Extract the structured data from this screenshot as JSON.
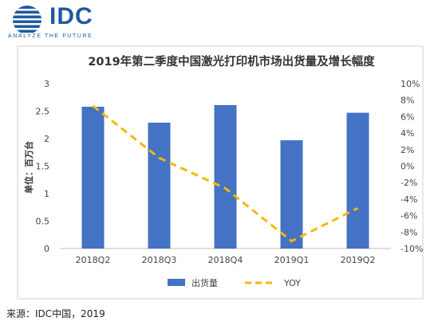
{
  "brand": {
    "name": "IDC",
    "tagline": "ANALYZE THE FUTURE",
    "color": "#1e5a9c"
  },
  "source_note": "来源：IDC中国，2019",
  "chart_data": {
    "type": "bar",
    "title": "2019年第二季度中国激光打印机市场出货量及增长幅度",
    "categories": [
      "2018Q2",
      "2018Q3",
      "2018Q4",
      "2019Q1",
      "2019Q2"
    ],
    "ylabel": "单位：百万台",
    "ylim": [
      0,
      3
    ],
    "yticks": [
      "0",
      "0.5",
      "1",
      "1.5",
      "2",
      "2.5",
      "3"
    ],
    "y2lim": [
      -10,
      10
    ],
    "y2ticks": [
      "-10%",
      "-8%",
      "-6%",
      "-4%",
      "-2%",
      "0%",
      "2%",
      "4%",
      "6%",
      "8%",
      "10%"
    ],
    "series": [
      {
        "name": "出货量",
        "type": "bar",
        "axis": "left",
        "color": "#4472c4",
        "values": [
          2.58,
          2.29,
          2.61,
          1.97,
          2.47
        ]
      },
      {
        "name": "YOY",
        "type": "line",
        "axis": "right",
        "style": "dashed",
        "color": "#f5b800",
        "values": [
          7.3,
          1.0,
          -2.7,
          -9.1,
          -5.1
        ]
      }
    ],
    "legend": "bottom-center",
    "grid": false
  }
}
